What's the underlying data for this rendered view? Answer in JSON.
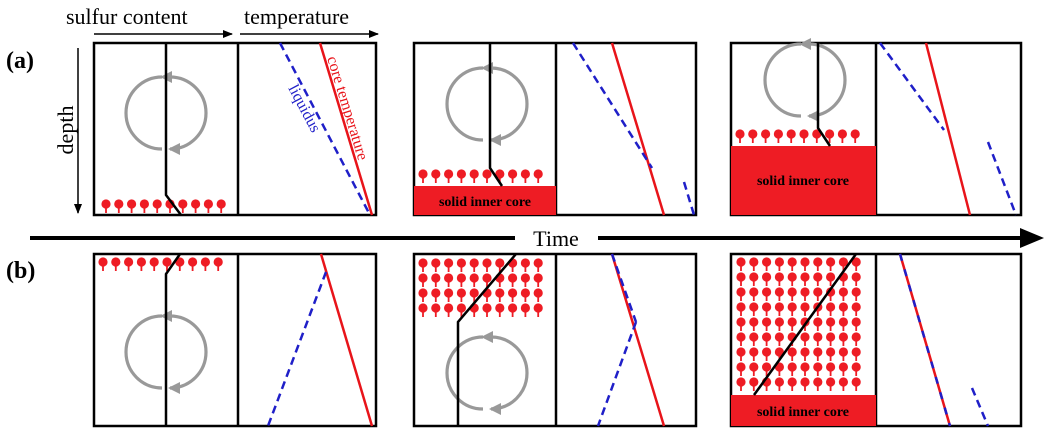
{
  "labels": {
    "sulfur_content": "sulfur content",
    "temperature": "temperature",
    "depth": "depth",
    "time": "Time",
    "row_a": "(a)",
    "row_b": "(b)",
    "core_temperature": "core temperature",
    "liquidus": "liquidus",
    "solid_inner_core": "solid inner core"
  },
  "colors": {
    "outline": "#000000",
    "core_temperature_line": "#e8141a",
    "liquidus_line": "#1f1fc8",
    "solid_fill": "#ee1c24",
    "convection_arrow": "#999999"
  }
}
